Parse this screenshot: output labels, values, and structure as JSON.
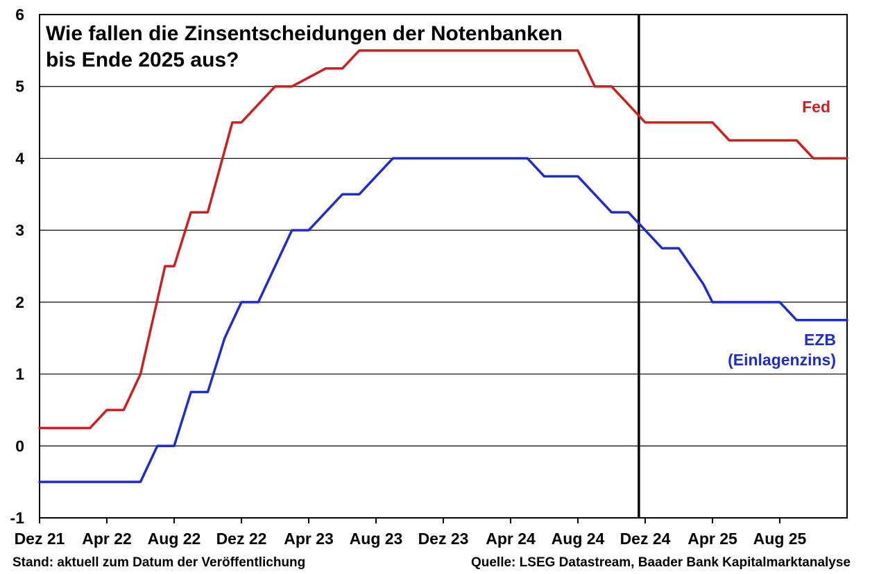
{
  "title_lines": [
    "Wie fallen die Zinsentscheidungen der Notenbanken",
    "bis Ende 2025 aus?"
  ],
  "footer": {
    "left": "Stand: aktuell zum Datum der Veröffentlichung",
    "right": "Quelle: LSEG Datastream, Baader Bank Kapitalmarktanalyse"
  },
  "series_labels": {
    "fed": [
      "Fed"
    ],
    "ezb": [
      "EZB",
      "(Einlagenzins)"
    ]
  },
  "chart_data": {
    "type": "line",
    "title": "Wie fallen die Zinsentscheidungen der Notenbanken bis Ende 2025 aus?",
    "xlim": [
      "2021-12",
      "2025-12"
    ],
    "ylim": [
      -1,
      6
    ],
    "y_ticks": [
      -1,
      0,
      1,
      2,
      3,
      4,
      5,
      6
    ],
    "x_ticks": [
      {
        "t": "2021-12",
        "label": "Dez 21"
      },
      {
        "t": "2022-04",
        "label": "Apr 22"
      },
      {
        "t": "2022-08",
        "label": "Aug 22"
      },
      {
        "t": "2022-12",
        "label": "Dez 22"
      },
      {
        "t": "2023-04",
        "label": "Apr 23"
      },
      {
        "t": "2023-08",
        "label": "Aug 23"
      },
      {
        "t": "2023-12",
        "label": "Dez 23"
      },
      {
        "t": "2024-04",
        "label": "Apr 24"
      },
      {
        "t": "2024-08",
        "label": "Aug 24"
      },
      {
        "t": "2024-12",
        "label": "Dez 24"
      },
      {
        "t": "2025-04",
        "label": "Apr 25"
      },
      {
        "t": "2025-08",
        "label": "Aug 25"
      }
    ],
    "grid": {
      "horizontal": true,
      "vertical": false
    },
    "vertical_marker": {
      "t": "2024-11-20",
      "color": "#000000"
    },
    "series": [
      {
        "name": "Fed",
        "color": "#cc1f1f",
        "points": [
          [
            "2021-12-01",
            0.25
          ],
          [
            "2022-03-01",
            0.25
          ],
          [
            "2022-04-01",
            0.5
          ],
          [
            "2022-05-01",
            0.5
          ],
          [
            "2022-06-01",
            1.0
          ],
          [
            "2022-07-15",
            2.5
          ],
          [
            "2022-08-01",
            2.5
          ],
          [
            "2022-09-01",
            3.25
          ],
          [
            "2022-10-01",
            3.25
          ],
          [
            "2022-11-15",
            4.5
          ],
          [
            "2022-12-01",
            4.5
          ],
          [
            "2023-02-01",
            5.0
          ],
          [
            "2023-03-01",
            5.0
          ],
          [
            "2023-05-01",
            5.25
          ],
          [
            "2023-06-01",
            5.25
          ],
          [
            "2023-07-01",
            5.5
          ],
          [
            "2024-08-01",
            5.5
          ],
          [
            "2024-09-01",
            5.0
          ],
          [
            "2024-10-01",
            5.0
          ],
          [
            "2024-12-01",
            4.5
          ],
          [
            "2025-04-01",
            4.5
          ],
          [
            "2025-05-01",
            4.25
          ],
          [
            "2025-09-01",
            4.25
          ],
          [
            "2025-10-01",
            4.0
          ],
          [
            "2025-12-01",
            4.0
          ]
        ]
      },
      {
        "name": "EZB",
        "color": "#1f2ccc",
        "points": [
          [
            "2021-12-01",
            -0.5
          ],
          [
            "2022-06-01",
            -0.5
          ],
          [
            "2022-07-01",
            0.0
          ],
          [
            "2022-08-01",
            0.0
          ],
          [
            "2022-09-01",
            0.75
          ],
          [
            "2022-10-01",
            0.75
          ],
          [
            "2022-11-01",
            1.5
          ],
          [
            "2022-12-01",
            2.0
          ],
          [
            "2023-01-01",
            2.0
          ],
          [
            "2023-03-01",
            3.0
          ],
          [
            "2023-04-01",
            3.0
          ],
          [
            "2023-06-01",
            3.5
          ],
          [
            "2023-07-01",
            3.5
          ],
          [
            "2023-09-01",
            4.0
          ],
          [
            "2024-05-01",
            4.0
          ],
          [
            "2024-06-01",
            3.75
          ],
          [
            "2024-08-01",
            3.75
          ],
          [
            "2024-10-01",
            3.25
          ],
          [
            "2024-11-01",
            3.25
          ],
          [
            "2025-01-01",
            2.75
          ],
          [
            "2025-02-01",
            2.75
          ],
          [
            "2025-03-15",
            2.25
          ],
          [
            "2025-04-01",
            2.0
          ],
          [
            "2025-08-01",
            2.0
          ],
          [
            "2025-09-01",
            1.75
          ],
          [
            "2025-12-01",
            1.75
          ]
        ]
      }
    ]
  }
}
